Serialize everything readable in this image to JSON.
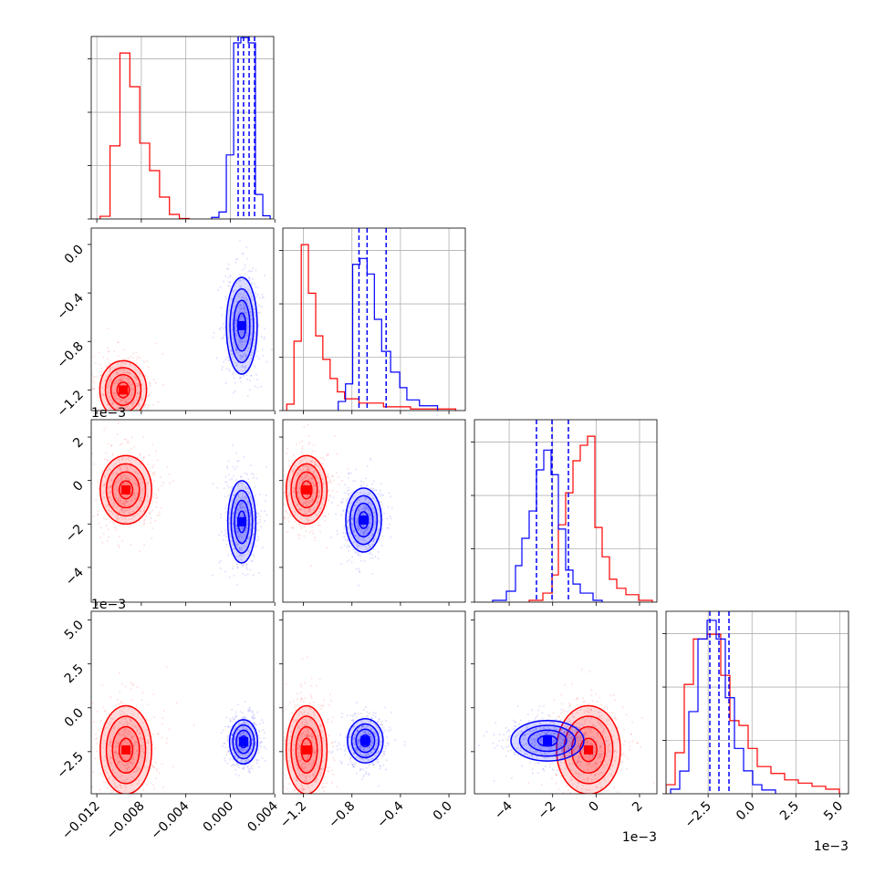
{
  "chart_data": {
    "type": "corner",
    "series_colors": [
      "#ff0000",
      "#0000ff"
    ],
    "quantile_color": "#0000ff",
    "grid": true,
    "params": [
      {
        "lim": [
          -0.0125,
          0.0039
        ],
        "ticks": [
          {
            "value": -0.012,
            "label": "−0.012"
          },
          {
            "value": -0.008,
            "label": "−0.008"
          },
          {
            "value": -0.004,
            "label": "−0.004"
          },
          {
            "value": 0,
            "label": "0.000"
          },
          {
            "value": 0.004,
            "label": "0.004"
          }
        ]
      },
      {
        "lim": [
          -1.37,
          0.135
        ],
        "ticks": [
          {
            "value": -1.2,
            "label": "−1.2"
          },
          {
            "value": -0.8,
            "label": "−0.8"
          },
          {
            "value": -0.4,
            "label": "−0.4"
          },
          {
            "value": 0,
            "label": "0.0"
          }
        ]
      },
      {
        "lim": [
          -5.6,
          2.8
        ],
        "ticks": [
          {
            "value": -4,
            "label": "−4"
          },
          {
            "value": -2,
            "label": "−2"
          },
          0,
          2
        ],
        "offset": "1e−3"
      },
      {
        "lim": [
          -4.9,
          5.5
        ],
        "ticks": [
          {
            "value": -2.5,
            "label": "−2.5"
          },
          {
            "value": 0,
            "label": "0.0"
          },
          {
            "value": 2.5,
            "label": "2.5"
          },
          {
            "value": 5,
            "label": "5.0"
          }
        ],
        "offset": "1e−3"
      }
    ],
    "histograms": [
      {
        "ylim": [
          0,
          3420
        ],
        "yticks": [
          0,
          1000,
          2000,
          3000
        ],
        "quantiles": [
          0.000702,
          0.00119,
          0.00169,
          0.00218
        ],
        "series": [
          {
            "bins": [
              -0.0117,
              -0.01081,
              -0.00992,
              -0.00903,
              -0.00814,
              -0.00725,
              -0.00636,
              -0.00547,
              -0.00458,
              -0.00369
            ],
            "counts": [
              50,
              1370,
              3110,
              2480,
              1420,
              906,
              410,
              85,
              10
            ]
          },
          {
            "bins": [
              -0.00168,
              -0.00102,
              -0.00036,
              0.0003,
              0.00095,
              0.00161,
              0.00226,
              0.00292,
              0.00358
            ],
            "counts": [
              30,
              130,
              1200,
              3300,
              3400,
              3300,
              460,
              60
            ]
          }
        ]
      },
      {
        "ylim": [
          0,
          3420
        ],
        "yticks": [
          0,
          1000,
          2000,
          3000
        ],
        "quantiles": [
          -0.742,
          -0.675,
          -0.518
        ],
        "series": [
          {
            "bins": [
              -1.338,
              -1.278,
              -1.218,
              -1.159,
              -1.099,
              -1.04,
              -0.98,
              -0.92,
              -0.861,
              -0.742,
              -0.54,
              -0.317,
              0.056
            ],
            "counts": [
              120,
              1300,
              3110,
              2200,
              1400,
              960,
              600,
              350,
              220,
              140,
              70,
              30
            ]
          },
          {
            "bins": [
              -0.913,
              -0.853,
              -0.794,
              -0.734,
              -0.675,
              -0.615,
              -0.555,
              -0.481,
              -0.406,
              -0.347,
              -0.243,
              -0.094
            ],
            "counts": [
              170,
              500,
              2740,
              2850,
              2560,
              1710,
              1110,
              720,
              430,
              200,
              90
            ]
          }
        ]
      },
      {
        "ylim": [
          0,
          3420
        ],
        "yticks": [
          0,
          1000,
          2000,
          3000
        ],
        "quantiles": [
          -2.744,
          -2.03,
          -1.274
        ],
        "series": [
          {
            "bins": [
              -3.08,
              -2.45,
              -2.03,
              -1.736,
              -1.4,
              -1.064,
              -0.728,
              -0.392,
              -0.056,
              0.28,
              0.616,
              0.952,
              1.372,
              1.96,
              2.59
            ],
            "counts": [
              34,
              170,
              510,
              1450,
              2050,
              2650,
              2940,
              3110,
              1400,
              850,
              430,
              260,
              140,
              34
            ]
          },
          {
            "bins": [
              -4.76,
              -4.13,
              -3.71,
              -3.416,
              -3.08,
              -2.744,
              -2.408,
              -2.072,
              -1.736,
              -1.4,
              -1.064,
              -0.728,
              -0.14,
              0.28
            ],
            "counts": [
              34,
              205,
              684,
              1197,
              1709,
              2480,
              2850,
              2390,
              1370,
              600,
              340,
              170,
              34
            ]
          }
        ]
      },
      {
        "ylim": [
          0,
          3420
        ],
        "yticks": [
          0,
          1000,
          2000,
          3000
        ],
        "quantiles": [
          -2.404,
          -1.884,
          -1.312
        ],
        "series": [
          {
            "bins": [
              -4.9,
              -4.38,
              -3.86,
              -3.34,
              -2.56,
              -1.78,
              -1.26,
              -0.74,
              -0.22,
              0.3,
              1.08,
              1.86,
              2.64,
              3.42,
              4.2,
              4.98
            ],
            "counts": [
              170,
              770,
              2050,
              2900,
              2990,
              2220,
              1370,
              1280,
              850,
              510,
              380,
              260,
              200,
              140,
              85
            ]
          },
          {
            "bins": [
              -4.64,
              -4.12,
              -3.6,
              -3.08,
              -2.56,
              -2.04,
              -1.52,
              -1.0,
              -0.48,
              0.04,
              0.56,
              1.34
            ],
            "counts": [
              85,
              425,
              1540,
              2900,
              3250,
              2900,
              1800,
              850,
              430,
              170,
              70
            ]
          }
        ]
      }
    ],
    "panels": [
      {
        "series": [
          {
            "center": [
              -0.00963,
              -1.2
            ],
            "spread": [
              0.001,
              0.115
            ]
          },
          {
            "center": [
              0.00103,
              -0.67
            ],
            "spread": [
              0.00066,
              0.19
            ]
          }
        ]
      },
      {
        "series": [
          {
            "center": [
              -0.00938,
              -0.43
            ],
            "spread": [
              0.0011,
              0.75
            ]
          },
          {
            "center": [
              0.00103,
              -1.9
            ],
            "spread": [
              0.0006,
              0.9
            ]
          }
        ]
      },
      {
        "series": [
          {
            "center": [
              -1.174,
              -0.43
            ],
            "spread": [
              0.08,
              0.75
            ]
          },
          {
            "center": [
              -0.704,
              -1.82
            ],
            "spread": [
              0.07,
              0.7
            ]
          }
        ]
      },
      {
        "series": [
          {
            "center": [
              -0.00938,
              -2.4
            ],
            "spread": [
              0.0011,
              1.2
            ]
          },
          {
            "center": [
              0.00119,
              -1.94
            ],
            "spread": [
              0.0006,
              0.6
            ]
          }
        ]
      },
      {
        "series": [
          {
            "center": [
              -1.174,
              -2.4
            ],
            "spread": [
              0.08,
              1.2
            ]
          },
          {
            "center": [
              -0.69,
              -1.88
            ],
            "spread": [
              0.07,
              0.6
            ]
          }
        ]
      },
      {
        "series": [
          {
            "center": [
              -0.35,
              -2.4
            ],
            "spread": [
              0.7,
              1.2
            ]
          },
          {
            "center": [
              -2.24,
              -1.88
            ],
            "spread": [
              0.8,
              0.55
            ]
          }
        ]
      }
    ]
  }
}
